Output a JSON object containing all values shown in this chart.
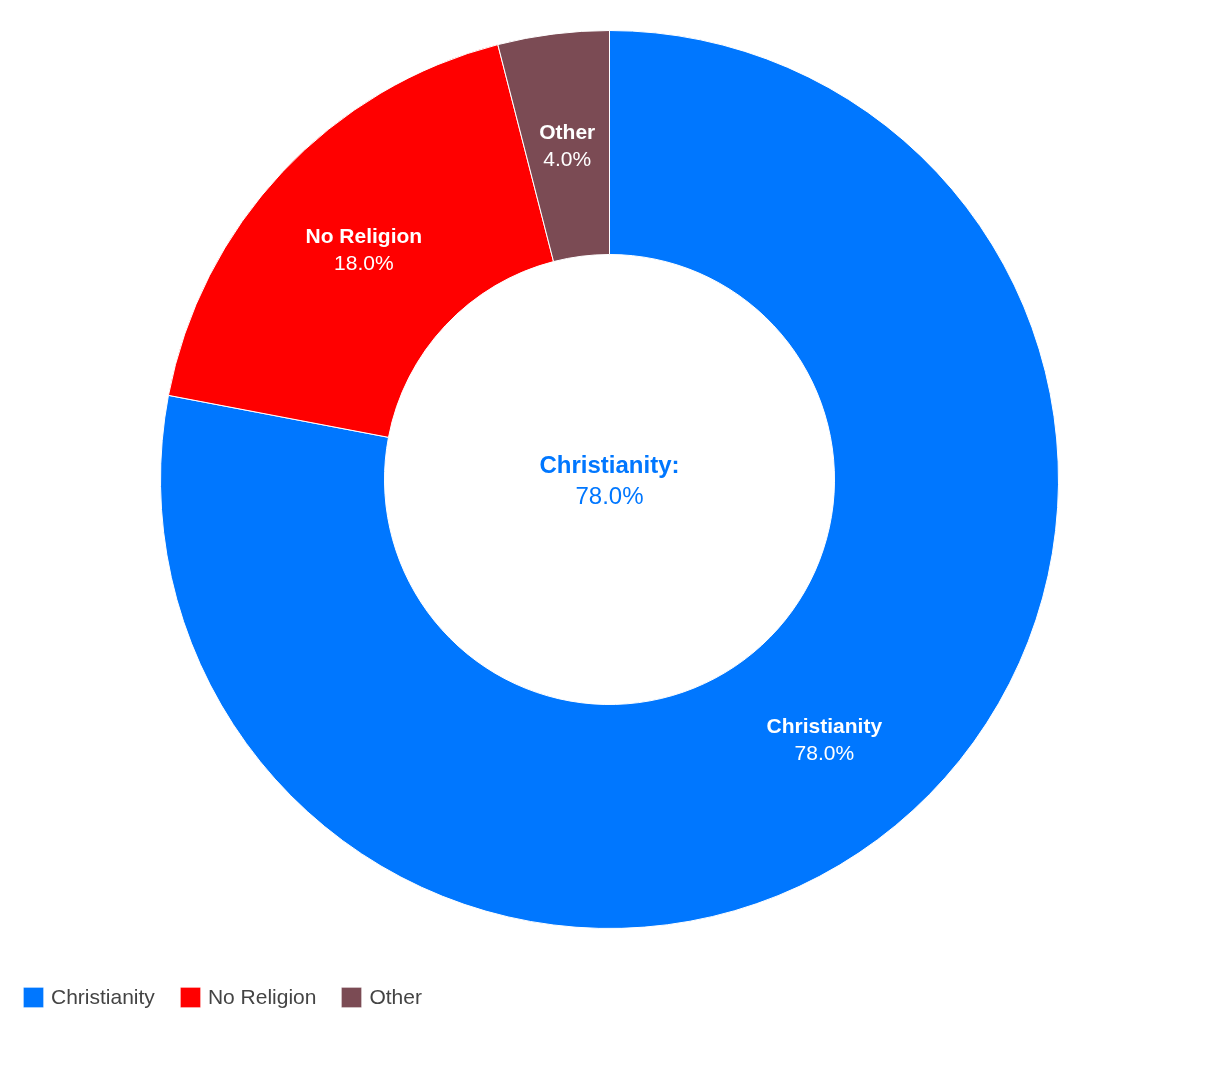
{
  "chart_data": {
    "type": "donut",
    "categories": [
      "Christianity",
      "No Religion",
      "Other"
    ],
    "values": [
      78,
      18,
      4
    ],
    "colors": [
      "#0077ff",
      "#ff0000",
      "#7b4b54"
    ],
    "value_labels": [
      "78.0%",
      "18.0%",
      "4.0%"
    ],
    "annotations": [
      "Christianity:",
      "78.0%"
    ],
    "legend": "bottom left"
  }
}
